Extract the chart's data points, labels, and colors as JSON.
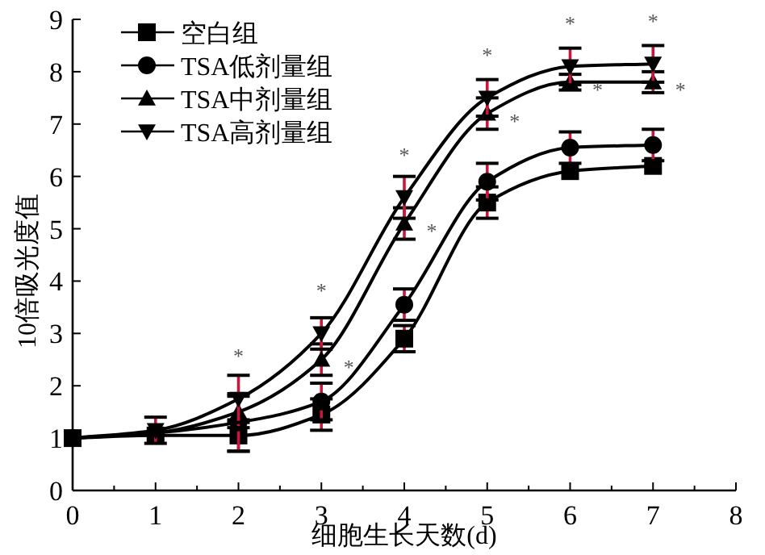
{
  "chart_data": {
    "type": "line",
    "xlabel": "细胞生长天数(d)",
    "ylabel": "10倍吸光度值",
    "x": [
      0,
      1,
      2,
      3,
      4,
      5,
      6,
      7
    ],
    "xlim": [
      0,
      8
    ],
    "xticks": [
      0,
      1,
      2,
      3,
      4,
      5,
      6,
      7,
      8
    ],
    "ylim": [
      0,
      9
    ],
    "yticks": [
      0,
      1,
      2,
      3,
      4,
      5,
      6,
      7,
      8,
      9
    ],
    "legend": "top left",
    "grid": false,
    "line_style": "solid",
    "series": [
      {
        "name": "空白组",
        "color": "#000000",
        "marker": "square",
        "values": [
          1.0,
          1.05,
          1.05,
          1.45,
          2.9,
          5.5,
          6.1,
          6.2
        ],
        "errors": [
          null,
          null,
          0.3,
          0.3,
          0.25,
          0.3,
          null,
          null
        ]
      },
      {
        "name": "TSA低剂量组",
        "color": "#000000",
        "marker": "circle",
        "values": [
          1.0,
          1.1,
          1.3,
          1.7,
          3.55,
          5.9,
          6.55,
          6.6
        ],
        "errors": [
          null,
          null,
          0.55,
          0.35,
          0.3,
          0.35,
          0.3,
          0.3
        ]
      },
      {
        "name": "TSA中剂量组",
        "color": "#000000",
        "marker": "triangle",
        "values": [
          1.0,
          1.1,
          1.5,
          2.5,
          5.1,
          7.2,
          7.8,
          7.8
        ],
        "errors": [
          null,
          null,
          0.3,
          0.3,
          0.3,
          0.3,
          0.15,
          0.2
        ]
      },
      {
        "name": "TSA高剂量组",
        "color": "#000000",
        "marker": "triangle_down",
        "values": [
          1.0,
          1.15,
          1.75,
          3.0,
          5.6,
          7.5,
          8.1,
          8.15
        ],
        "errors": [
          null,
          0.25,
          0.45,
          0.3,
          0.4,
          0.35,
          0.35,
          0.35
        ]
      }
    ],
    "annotations": [
      {
        "text": "*",
        "x": 2,
        "y": 1.75
      },
      {
        "text": "*",
        "x": 3,
        "y": 3.0
      },
      {
        "text": "*",
        "x": 3,
        "y": 2.5
      },
      {
        "text": "*",
        "x": 4,
        "y": 5.6
      },
      {
        "text": "*",
        "x": 4,
        "y": 5.1
      },
      {
        "text": "*",
        "x": 5,
        "y": 7.5
      },
      {
        "text": "*",
        "x": 5,
        "y": 7.2
      },
      {
        "text": "*",
        "x": 6,
        "y": 8.1
      },
      {
        "text": "*",
        "x": 6,
        "y": 7.8
      },
      {
        "text": "*",
        "x": 7,
        "y": 8.15
      },
      {
        "text": "*",
        "x": 7,
        "y": 7.8
      }
    ]
  }
}
